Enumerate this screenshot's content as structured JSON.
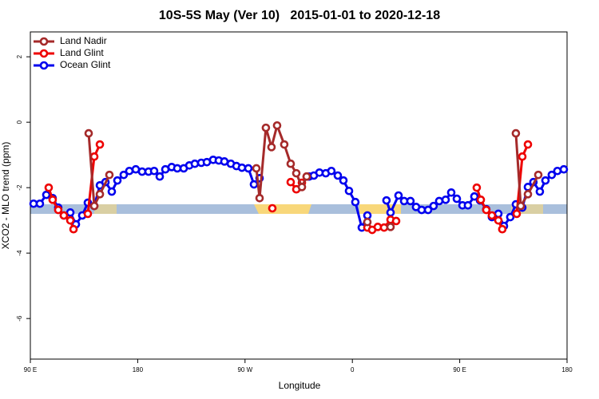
{
  "chart_data": {
    "type": "line",
    "title": "10S-5S May (Ver 10)   2015-01-01 to 2020-12-18",
    "xlabel": "Longitude",
    "ylabel": "XCO2 - MLO trend (ppm)",
    "xlim": [
      90,
      540
    ],
    "xticks": [
      {
        "value": 90,
        "label": "90 E"
      },
      180,
      {
        "value": 270,
        "label": "90 W"
      },
      {
        "value": 360,
        "label": "0"
      },
      {
        "value": 450,
        "label": "90 E"
      },
      {
        "value": 540,
        "label": "180"
      }
    ],
    "ylim": [
      -7.24,
      2.76
    ],
    "yticks": [
      2,
      0,
      -2,
      -4,
      -6
    ],
    "legend": "top-left",
    "series": [
      {
        "name": "Land Nadir",
        "color": "#a52a2a",
        "x": [
          138.9,
          143.6,
          148.3,
          156.3,
          null,
          279.5,
          282.2,
          287.5,
          292.2,
          296.9,
          302.9,
          308.3,
          313.0,
          317.7,
          321.7,
          null,
          372.6,
          null,
          392.0,
          null,
          497.1,
          501.2,
          507.2,
          515.9
        ],
        "values": [
          -0.34,
          -2.56,
          -2.2,
          -1.61,
          null,
          -1.41,
          -2.32,
          -0.17,
          -0.76,
          -0.1,
          -0.68,
          -1.27,
          -1.56,
          -1.98,
          -1.66,
          null,
          -3.05,
          null,
          -3.2,
          null,
          -0.34,
          -2.56,
          -2.2,
          -1.61
        ]
      },
      {
        "name": "Land Glint",
        "color": "#ee0000",
        "x": [
          105.4,
          108.7,
          113.4,
          118.1,
          123.5,
          126.2,
          null,
          138.2,
          143.6,
          148.3,
          null,
          292.9,
          null,
          308.3,
          313.0,
          317.7,
          321.7,
          null,
          372.6,
          376.6,
          381.3,
          386.6,
          392.0,
          396.7,
          null,
          464.3,
          467.7,
          472.3,
          477.0,
          482.4,
          485.7,
          null,
          497.8,
          502.5,
          507.2
        ],
        "values": [
          -2.0,
          -2.37,
          -2.68,
          -2.85,
          -3.0,
          -3.27,
          null,
          -2.8,
          -1.05,
          -0.68,
          null,
          -2.63,
          null,
          -1.83,
          -2.05,
          -1.85,
          -1.66,
          null,
          -3.22,
          -3.29,
          -3.2,
          -3.22,
          -2.98,
          -3.02,
          null,
          -2.0,
          -2.37,
          -2.68,
          -2.85,
          -3.0,
          -3.27,
          null,
          -2.8,
          -1.05,
          -0.68
        ]
      },
      {
        "name": "Ocean Glint",
        "color": "#0000ee",
        "x": [
          92.7,
          98.0,
          103.4,
          108.7,
          113.4,
          118.1,
          123.5,
          128.2,
          133.5,
          138.2,
          143.6,
          148.3,
          153.0,
          158.3,
          163.0,
          168.3,
          173.0,
          178.4,
          183.7,
          189.1,
          193.8,
          198.5,
          203.2,
          208.5,
          213.2,
          218.6,
          223.3,
          227.9,
          233.3,
          238.0,
          243.3,
          248.0,
          252.7,
          258.1,
          262.8,
          267.4,
          272.8,
          277.5,
          282.2,
          null,
          323.7,
          327.7,
          332.4,
          337.7,
          342.4,
          347.8,
          352.5,
          357.2,
          362.5,
          367.9,
          372.6,
          null,
          388.6,
          392.0,
          398.7,
          403.4,
          408.7,
          413.4,
          418.1,
          423.5,
          428.1,
          432.8,
          438.2,
          442.9,
          447.6,
          452.3,
          456.9,
          462.3,
          467.0,
          472.3,
          477.0,
          482.4,
          487.1,
          492.4,
          497.1,
          502.5,
          507.2,
          511.8,
          517.2,
          521.9,
          527.2,
          531.9,
          537.3
        ],
        "values": [
          -2.49,
          -2.49,
          -2.22,
          -2.32,
          -2.61,
          -2.85,
          -2.76,
          -3.12,
          -2.85,
          -2.46,
          -2.56,
          -1.93,
          -1.83,
          -2.12,
          -1.78,
          -1.61,
          -1.49,
          -1.44,
          -1.51,
          -1.51,
          -1.49,
          -1.66,
          -1.44,
          -1.37,
          -1.41,
          -1.41,
          -1.32,
          -1.27,
          -1.24,
          -1.22,
          -1.15,
          -1.17,
          -1.2,
          -1.27,
          -1.34,
          -1.39,
          -1.41,
          -1.9,
          -1.71,
          null,
          -1.66,
          -1.63,
          -1.54,
          -1.56,
          -1.49,
          -1.63,
          -1.78,
          -2.1,
          -2.44,
          -3.22,
          -2.85,
          null,
          -2.39,
          -2.76,
          -2.24,
          -2.41,
          -2.41,
          -2.59,
          -2.68,
          -2.68,
          -2.56,
          -2.41,
          -2.37,
          -2.15,
          -2.34,
          -2.54,
          -2.54,
          -2.27,
          -2.39,
          -2.66,
          -2.9,
          -2.8,
          -3.17,
          -2.9,
          -2.51,
          -2.61,
          -1.98,
          -1.83,
          -2.12,
          -1.78,
          -1.61,
          -1.49,
          -1.44
        ]
      }
    ]
  }
}
